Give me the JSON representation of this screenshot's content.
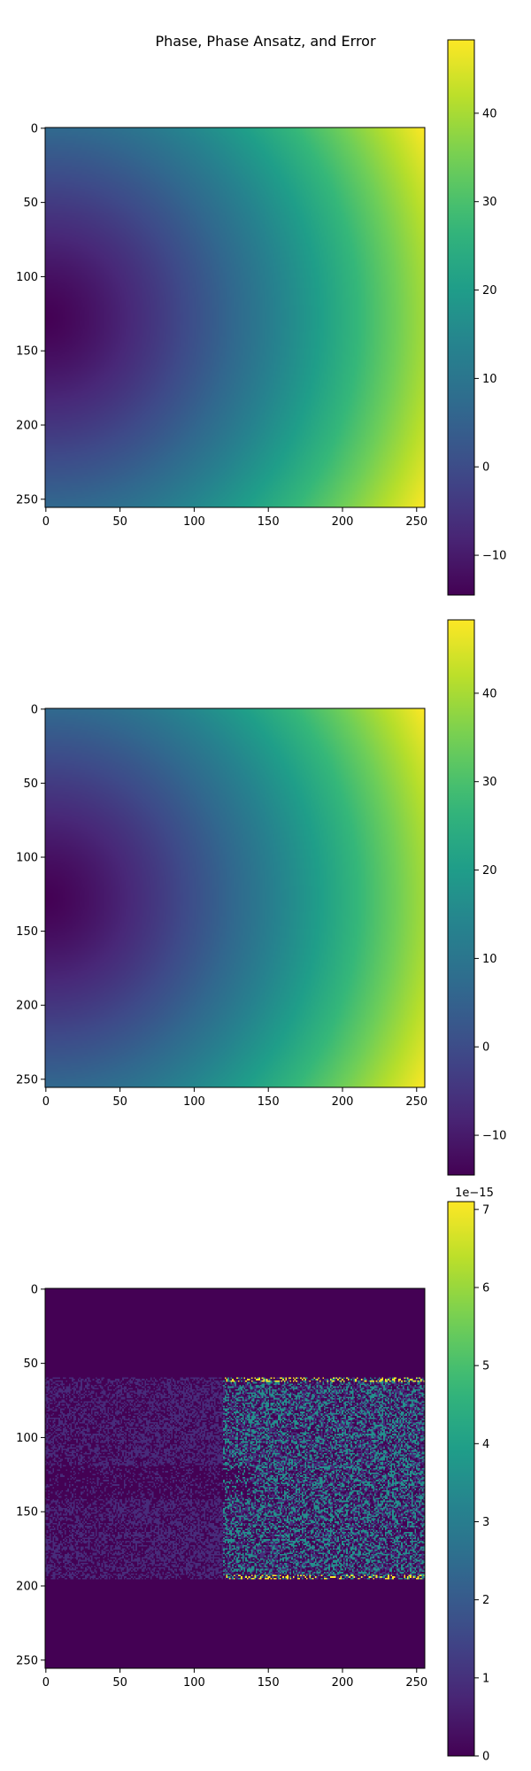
{
  "figure": {
    "title": "Phase, Phase Ansatz, and Error"
  },
  "chart_data": [
    {
      "type": "heatmap",
      "name": "phase",
      "colormap": "viridis",
      "x_range": [
        0,
        255
      ],
      "y_range": [
        0,
        255
      ],
      "x_ticks": [
        0,
        50,
        100,
        150,
        200,
        250
      ],
      "y_ticks": [
        0,
        50,
        100,
        150,
        200,
        250
      ],
      "y_inverted": true,
      "value_range": [
        -14.5,
        48.3
      ],
      "colorbar_ticks": [
        -10,
        0,
        10,
        20,
        30,
        40
      ],
      "colorbar_exponent": "",
      "pattern": {
        "kind": "radial",
        "center": [
          0,
          128
        ],
        "min_value": -14.5,
        "max_value": 48.3
      }
    },
    {
      "type": "heatmap",
      "name": "phase-ansatz",
      "colormap": "viridis",
      "x_range": [
        0,
        255
      ],
      "y_range": [
        0,
        255
      ],
      "x_ticks": [
        0,
        50,
        100,
        150,
        200,
        250
      ],
      "y_ticks": [
        0,
        50,
        100,
        150,
        200,
        250
      ],
      "y_inverted": true,
      "value_range": [
        -14.5,
        48.3
      ],
      "colorbar_ticks": [
        -10,
        0,
        10,
        20,
        30,
        40
      ],
      "colorbar_exponent": "",
      "pattern": {
        "kind": "radial",
        "center": [
          0,
          128
        ],
        "min_value": -14.5,
        "max_value": 48.3
      }
    },
    {
      "type": "heatmap",
      "name": "error",
      "colormap": "viridis",
      "x_range": [
        0,
        255
      ],
      "y_range": [
        0,
        255
      ],
      "x_ticks": [
        0,
        50,
        100,
        150,
        200,
        250
      ],
      "y_ticks": [
        0,
        50,
        100,
        150,
        200,
        250
      ],
      "y_inverted": true,
      "value_range": [
        0,
        7.1
      ],
      "colorbar_ticks": [
        0,
        1,
        2,
        3,
        4,
        5,
        6,
        7
      ],
      "colorbar_exponent": "1e−15",
      "pattern": {
        "kind": "noise-band",
        "band_rows": [
          60,
          195
        ],
        "noise_levels": [
          0,
          0.89,
          3.55,
          7.1
        ]
      }
    }
  ]
}
